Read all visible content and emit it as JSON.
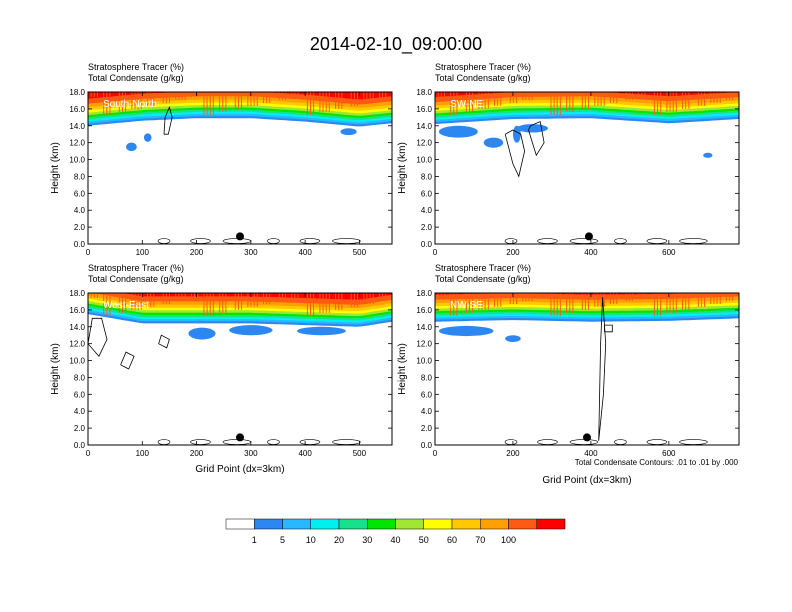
{
  "figure": {
    "title": "2014-02-10_09:00:00",
    "footnote": "Total Condensate Contours: .01 to .01 by .000"
  },
  "colorbar": {
    "colors": [
      "#ffffff",
      "#2d87f0",
      "#29b8ff",
      "#00f0f0",
      "#18e18c",
      "#00e600",
      "#a0e632",
      "#ffff00",
      "#ffc800",
      "#ffa000",
      "#ff5a14",
      "#ff0000"
    ],
    "labels": [
      "1",
      "5",
      "10",
      "20",
      "30",
      "40",
      "50",
      "60",
      "70",
      "100"
    ]
  },
  "chart_data": [
    {
      "type": "heatmap",
      "label": "South-North",
      "title_lines": [
        "Stratosphere Tracer   (%)",
        "Total Condensate   (g/kg)"
      ],
      "ylabel": "Height (km)",
      "xlabel": "",
      "xlim": [
        0,
        560
      ],
      "ylim": [
        0,
        18
      ],
      "xticks": [
        0,
        100,
        200,
        300,
        400,
        500
      ],
      "yticks": [
        "0.0",
        "2.0",
        "4.0",
        "6.0",
        "8.0",
        "10.0",
        "12.0",
        "14.0",
        "16.0",
        "18.0"
      ],
      "marker_x": 280,
      "tracer_profile": {
        "x": [
          0,
          100,
          200,
          300,
          400,
          500,
          560
        ],
        "base_km": [
          14.0,
          14.6,
          14.9,
          14.9,
          14.5,
          13.9,
          14.3
        ]
      },
      "blobs": [
        {
          "x": 80,
          "y": 11.5,
          "dx": 10,
          "dy": 0.5
        },
        {
          "x": 110,
          "y": 12.6,
          "dx": 7,
          "dy": 0.5
        },
        {
          "x": 480,
          "y": 13.3,
          "dx": 15,
          "dy": 0.4
        }
      ],
      "contours": [
        {
          "x": [
            140,
            148,
            155,
            150,
            142,
            140
          ],
          "y": [
            13.0,
            13.0,
            15.0,
            16.2,
            15.0,
            13.0
          ]
        }
      ]
    },
    {
      "type": "heatmap",
      "label": "SW-NE",
      "title_lines": [
        "Stratosphere Tracer   (%)",
        "Total Condensate   (g/kg)"
      ],
      "ylabel": "Height (km)",
      "xlabel": "",
      "xlim": [
        0,
        780
      ],
      "ylim": [
        0,
        18
      ],
      "xticks": [
        0,
        200,
        400,
        600
      ],
      "yticks": [
        "0.0",
        "2.0",
        "4.0",
        "6.0",
        "8.0",
        "10.0",
        "12.0",
        "14.0",
        "16.0",
        "18.0"
      ],
      "marker_x": 395,
      "tracer_profile": {
        "x": [
          0,
          200,
          400,
          600,
          780
        ],
        "base_km": [
          14.2,
          14.8,
          14.9,
          14.3,
          14.8
        ]
      },
      "blobs": [
        {
          "x": 60,
          "y": 13.3,
          "dx": 50,
          "dy": 0.7
        },
        {
          "x": 150,
          "y": 12.0,
          "dx": 25,
          "dy": 0.6
        },
        {
          "x": 210,
          "y": 13.0,
          "dx": 10,
          "dy": 1.0
        },
        {
          "x": 250,
          "y": 13.7,
          "dx": 40,
          "dy": 0.5
        },
        {
          "x": 700,
          "y": 10.5,
          "dx": 12,
          "dy": 0.3
        }
      ],
      "contours": [
        {
          "x": [
            180,
            200,
            215,
            230,
            220,
            200,
            180
          ],
          "y": [
            13.0,
            9.5,
            8.0,
            11.0,
            13.0,
            13.5,
            13.0
          ]
        },
        {
          "x": [
            240,
            260,
            280,
            270,
            245,
            240
          ],
          "y": [
            13.5,
            10.5,
            12.0,
            14.5,
            14.0,
            13.5
          ]
        }
      ]
    },
    {
      "type": "heatmap",
      "label": "West-East",
      "title_lines": [
        "Stratosphere Tracer   (%)",
        "Total Condensate   (g/kg)"
      ],
      "ylabel": "Height (km)",
      "xlabel": "Grid Point (dx=3km)",
      "xlim": [
        0,
        560
      ],
      "ylim": [
        0,
        18
      ],
      "xticks": [
        0,
        100,
        200,
        300,
        400,
        500
      ],
      "yticks": [
        "0.0",
        "2.0",
        "4.0",
        "6.0",
        "8.0",
        "10.0",
        "12.0",
        "14.0",
        "16.0",
        "18.0"
      ],
      "marker_x": 280,
      "tracer_profile": {
        "x": [
          0,
          100,
          200,
          300,
          400,
          500,
          560
        ],
        "base_km": [
          15.5,
          14.4,
          14.4,
          14.4,
          14.2,
          14.0,
          14.6
        ]
      },
      "blobs": [
        {
          "x": 210,
          "y": 13.2,
          "dx": 25,
          "dy": 0.7
        },
        {
          "x": 300,
          "y": 13.6,
          "dx": 40,
          "dy": 0.6
        },
        {
          "x": 430,
          "y": 13.5,
          "dx": 45,
          "dy": 0.5
        }
      ],
      "contours": [
        {
          "x": [
            0,
            20,
            35,
            25,
            8,
            0
          ],
          "y": [
            12.0,
            10.5,
            12.5,
            15.0,
            15.0,
            12.0
          ]
        },
        {
          "x": [
            60,
            75,
            85,
            70,
            60
          ],
          "y": [
            9.5,
            9.0,
            10.5,
            11.0,
            9.5
          ]
        },
        {
          "x": [
            130,
            145,
            150,
            135,
            130
          ],
          "y": [
            12.0,
            11.5,
            12.5,
            13.0,
            12.0
          ]
        }
      ]
    },
    {
      "type": "heatmap",
      "label": "NW-SE",
      "title_lines": [
        "Stratosphere Tracer   (%)",
        "Total Condensate   (g/kg)"
      ],
      "ylabel": "Height (km)",
      "xlabel": "Grid Point (dx=3km)",
      "xlim": [
        0,
        780
      ],
      "ylim": [
        0,
        18
      ],
      "xticks": [
        0,
        200,
        400,
        600
      ],
      "yticks": [
        "0.0",
        "2.0",
        "4.0",
        "6.0",
        "8.0",
        "10.0",
        "12.0",
        "14.0",
        "16.0",
        "18.0"
      ],
      "marker_x": 390,
      "tracer_profile": {
        "x": [
          0,
          200,
          400,
          600,
          780
        ],
        "base_km": [
          14.6,
          14.8,
          14.6,
          14.7,
          15.0
        ]
      },
      "blobs": [
        {
          "x": 80,
          "y": 13.5,
          "dx": 70,
          "dy": 0.6
        },
        {
          "x": 200,
          "y": 12.6,
          "dx": 20,
          "dy": 0.4
        }
      ],
      "contours": [
        {
          "x": [
            420,
            432,
            438,
            430,
            425,
            420
          ],
          "y": [
            0.5,
            6.0,
            12.0,
            17.5,
            12.0,
            0.5
          ]
        },
        {
          "x": [
            435,
            455,
            455,
            435,
            435
          ],
          "y": [
            13.4,
            13.4,
            14.2,
            14.2,
            13.4
          ]
        }
      ]
    }
  ]
}
